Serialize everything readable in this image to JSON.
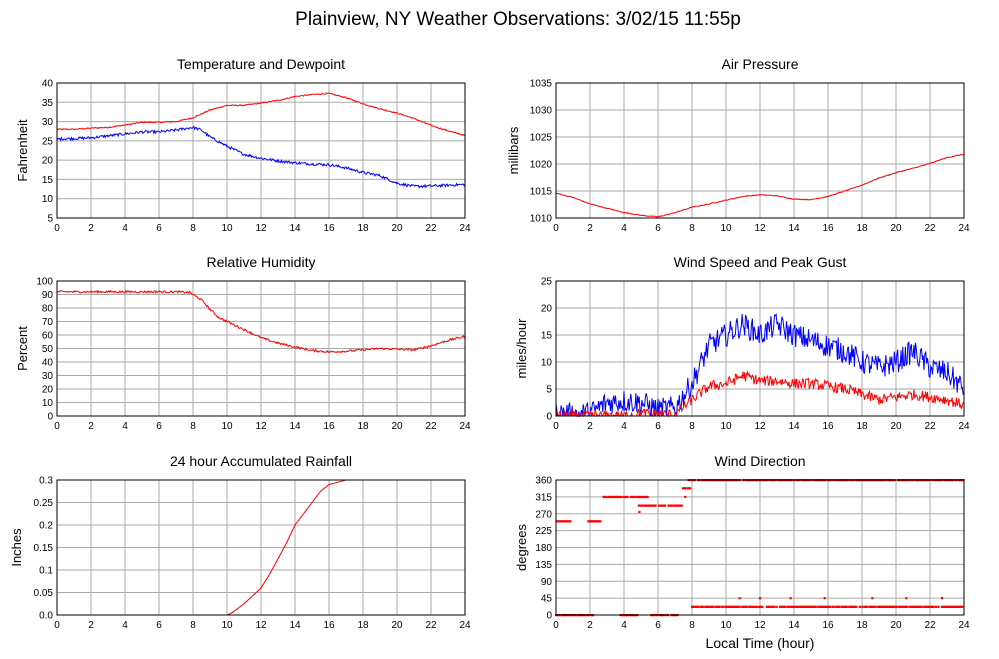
{
  "page_title": "Plainview, NY Weather Observations: 3/02/15 11:55p",
  "x_axis_label": "Local Time (hour)",
  "colors": {
    "primary": "#ff0000",
    "secondary": "#0000ff",
    "grid": "#aaaaaa",
    "frame": "#000000"
  },
  "chart_data": [
    {
      "id": "temp",
      "type": "line",
      "title": "Temperature and Dewpoint",
      "ylabel": "Fahrenheit",
      "xlim": [
        0,
        24
      ],
      "ylim": [
        5,
        40
      ],
      "xticks": [
        0,
        2,
        4,
        6,
        8,
        10,
        12,
        14,
        16,
        18,
        20,
        22,
        24
      ],
      "yticks": [
        5,
        10,
        15,
        20,
        25,
        30,
        35,
        40
      ],
      "grid": true,
      "series": [
        {
          "color": "#ff0000",
          "noise": 0.15,
          "x": [
            0,
            1,
            2,
            3,
            4,
            5,
            6,
            7,
            8,
            9,
            10,
            11,
            12,
            13,
            14,
            15,
            16,
            17,
            18,
            19,
            20,
            21,
            22,
            23,
            24
          ],
          "y": [
            28,
            28,
            28.3,
            28.5,
            29.1,
            29.8,
            29.8,
            30,
            31,
            33,
            34.2,
            34.2,
            34.8,
            35.5,
            36.5,
            37,
            37.3,
            36.2,
            34.6,
            33.3,
            32.2,
            30.8,
            29,
            27.6,
            26.4
          ]
        },
        {
          "color": "#0000ff",
          "noise": 0.35,
          "x": [
            0,
            1,
            2,
            3,
            4,
            5,
            6,
            7,
            8,
            8.5,
            9,
            10,
            11,
            12,
            13,
            14,
            15,
            16,
            17,
            18,
            19,
            20,
            21,
            22,
            23,
            24
          ],
          "y": [
            25.5,
            25.6,
            25.8,
            26.3,
            26.8,
            27.3,
            27.3,
            27.8,
            28.5,
            27.8,
            26,
            23.6,
            21.5,
            20.5,
            19.8,
            19.3,
            19,
            18.8,
            18,
            16.8,
            16,
            14,
            13.2,
            13.3,
            13.5,
            13.7
          ]
        }
      ]
    },
    {
      "id": "pressure",
      "type": "line",
      "title": "Air Pressure",
      "ylabel": "millibars",
      "xlim": [
        0,
        24
      ],
      "ylim": [
        1010,
        1035
      ],
      "xticks": [
        0,
        2,
        4,
        6,
        8,
        10,
        12,
        14,
        16,
        18,
        20,
        22,
        24
      ],
      "yticks": [
        1010,
        1015,
        1020,
        1025,
        1030,
        1035
      ],
      "grid": true,
      "series": [
        {
          "color": "#ff0000",
          "noise": 0.08,
          "x": [
            0,
            1,
            2,
            3,
            4,
            5,
            6,
            7,
            8,
            9,
            10,
            11,
            12,
            13,
            14,
            15,
            16,
            17,
            18,
            19,
            20,
            21,
            22,
            23,
            24
          ],
          "y": [
            1014.6,
            1013.8,
            1012.6,
            1011.8,
            1011,
            1010.5,
            1010.2,
            1011,
            1012,
            1012.6,
            1013.3,
            1014,
            1014.3,
            1014.1,
            1013.5,
            1013.4,
            1014,
            1015,
            1016.1,
            1017.4,
            1018.4,
            1019.2,
            1020.1,
            1021.2,
            1021.8
          ]
        }
      ]
    },
    {
      "id": "humidity",
      "type": "line",
      "title": "Relative Humidity",
      "ylabel": "Percent",
      "xlim": [
        0,
        24
      ],
      "ylim": [
        0,
        100
      ],
      "xticks": [
        0,
        2,
        4,
        6,
        8,
        10,
        12,
        14,
        16,
        18,
        20,
        22,
        24
      ],
      "yticks": [
        0,
        10,
        20,
        30,
        40,
        50,
        60,
        70,
        80,
        90,
        100
      ],
      "grid": true,
      "series": [
        {
          "color": "#ff0000",
          "noise": 0.8,
          "x": [
            0,
            1,
            2,
            3,
            4,
            5,
            6,
            7,
            7.8,
            8.5,
            9,
            9.5,
            10,
            11,
            12,
            13,
            14,
            15,
            16,
            17,
            18,
            19,
            20,
            21,
            22,
            23,
            24
          ],
          "y": [
            92,
            92,
            92,
            92,
            92,
            92,
            92,
            92,
            91.5,
            86,
            79,
            73,
            70,
            64,
            58,
            54,
            51,
            48.5,
            47.5,
            48,
            49,
            50,
            49.5,
            49,
            52,
            56,
            59
          ]
        }
      ]
    },
    {
      "id": "wind",
      "type": "line",
      "title": "Wind Speed and Peak Gust",
      "ylabel": "miles/hour",
      "xlim": [
        0,
        24
      ],
      "ylim": [
        0,
        25
      ],
      "xticks": [
        0,
        2,
        4,
        6,
        8,
        10,
        12,
        14,
        16,
        18,
        20,
        22,
        24
      ],
      "yticks": [
        0,
        5,
        10,
        15,
        20,
        25
      ],
      "grid": true,
      "series": [
        {
          "color": "#0000ff",
          "noise": 2.2,
          "x": [
            0,
            1,
            2,
            3,
            4,
            5,
            6,
            7,
            8,
            9,
            10,
            11,
            12,
            13,
            14,
            15,
            16,
            17,
            18,
            19,
            20,
            21,
            22,
            23,
            24
          ],
          "y": [
            0.5,
            0.3,
            0.5,
            2.5,
            2.8,
            2.5,
            1.2,
            1.5,
            6,
            13,
            15,
            17,
            15,
            17,
            15,
            14,
            13,
            12,
            10,
            9,
            10,
            12,
            9,
            8,
            5
          ]
        },
        {
          "color": "#ff0000",
          "noise": 1.0,
          "x": [
            0,
            1,
            2,
            3,
            4,
            5,
            6,
            7,
            8,
            9,
            10,
            11,
            12,
            13,
            14,
            15,
            16,
            17,
            18,
            19,
            20,
            21,
            22,
            23,
            24
          ],
          "y": [
            0,
            0,
            0,
            0,
            0,
            0.5,
            0.3,
            0.3,
            3,
            5.5,
            6,
            7.5,
            6.5,
            6.5,
            6,
            6,
            5.5,
            5,
            4,
            3,
            3.5,
            4,
            3.5,
            3,
            2
          ]
        }
      ]
    },
    {
      "id": "rain",
      "type": "line",
      "title": "24 hour Accumulated Rainfall",
      "ylabel": "Inches",
      "xlim": [
        0,
        24
      ],
      "ylim": [
        0,
        0.3
      ],
      "xticks": [
        0,
        2,
        4,
        6,
        8,
        10,
        12,
        14,
        16,
        18,
        20,
        22,
        24
      ],
      "yticks": [
        0.0,
        0.05,
        0.1,
        0.15,
        0.2,
        0.25,
        0.3
      ],
      "ytick_labels": [
        "0.0",
        "0.05",
        "0.1",
        "0.15",
        "0.2",
        "0.25",
        "0.3"
      ],
      "grid": true,
      "series": [
        {
          "color": "#ff0000",
          "noise": 0,
          "step": true,
          "x": [
            0,
            10,
            10.3,
            11,
            12,
            12.5,
            13,
            13.5,
            14,
            14.5,
            15,
            15.5,
            16,
            16.5,
            17,
            18.3
          ],
          "y": [
            0,
            0,
            0.005,
            0.025,
            0.06,
            0.09,
            0.125,
            0.16,
            0.2,
            0.225,
            0.25,
            0.275,
            0.29,
            0.295,
            0.3,
            0.3
          ]
        }
      ]
    },
    {
      "id": "direction",
      "type": "scatter",
      "title": "Wind Direction",
      "ylabel": "degrees",
      "xlim": [
        0,
        24
      ],
      "ylim": [
        0,
        360
      ],
      "xticks": [
        0,
        2,
        4,
        6,
        8,
        10,
        12,
        14,
        16,
        18,
        20,
        22,
        24
      ],
      "yticks": [
        0,
        45,
        90,
        135,
        180,
        225,
        270,
        315,
        360
      ],
      "grid": true,
      "series": [
        {
          "color": "#ff0000",
          "segments": [
            {
              "x": [
                0,
                0.9
              ],
              "y": 250
            },
            {
              "x": [
                1.9,
                2.6
              ],
              "y": 250
            },
            {
              "x": [
                0,
                2.2
              ],
              "y": 0
            },
            {
              "x": [
                2.8,
                4.2
              ],
              "y": 315
            },
            {
              "x": [
                4.4,
                5.4
              ],
              "y": 315
            },
            {
              "x": [
                3.8,
                4.8
              ],
              "y": 0
            },
            {
              "x": [
                4.8,
                7.4
              ],
              "y": 292
            },
            {
              "x": [
                5.6,
                7.2
              ],
              "y": 0
            },
            {
              "x": [
                7.4,
                7.9
              ],
              "y": 338
            },
            {
              "x": [
                7.8,
                24
              ],
              "y": 360
            },
            {
              "x": [
                8,
                24
              ],
              "y": 22
            }
          ],
          "points": [
            {
              "x": 4.9,
              "y": 275
            },
            {
              "x": 7.6,
              "y": 315
            },
            {
              "x": 10.8,
              "y": 45
            },
            {
              "x": 12,
              "y": 45
            },
            {
              "x": 13.8,
              "y": 45
            },
            {
              "x": 15.8,
              "y": 45
            },
            {
              "x": 18.6,
              "y": 45
            },
            {
              "x": 20.6,
              "y": 45
            },
            {
              "x": 22.7,
              "y": 45
            }
          ]
        }
      ]
    }
  ]
}
